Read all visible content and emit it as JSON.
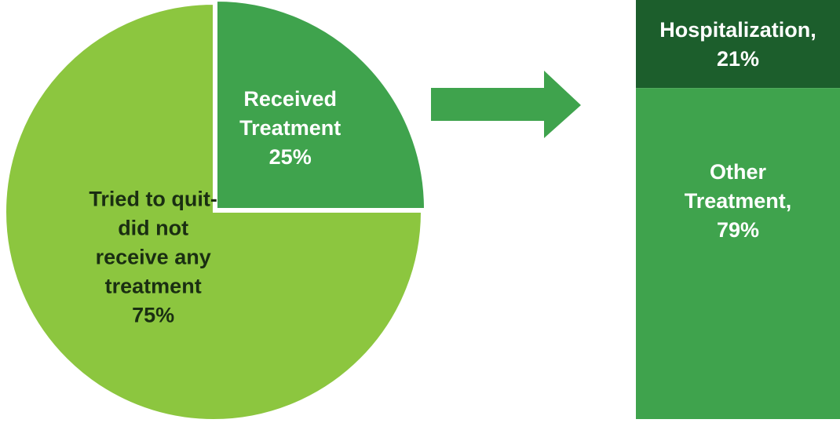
{
  "chart_data": [
    {
      "type": "pie",
      "slices": [
        {
          "label_lines": [
            "Tried to quit-",
            "did not",
            "receive any",
            "treatment",
            "75%"
          ],
          "value": 75,
          "color": "#8cc63f",
          "text_color": "#1a2e12"
        },
        {
          "label_lines": [
            "Received",
            "Treatment",
            "25%"
          ],
          "value": 25,
          "color": "#3fa34d",
          "text_color": "#ffffff"
        }
      ]
    },
    {
      "type": "bar",
      "stacked": true,
      "segments": [
        {
          "label_lines": [
            "Hospitalization,",
            "21%"
          ],
          "value": 21,
          "color": "#1c5e2c",
          "text_color": "#ffffff"
        },
        {
          "label_lines": [
            "Other",
            "Treatment,",
            "79%"
          ],
          "value": 79,
          "color": "#3fa34d",
          "text_color": "#ffffff"
        }
      ]
    }
  ],
  "arrow": {
    "icon": "right-arrow-icon",
    "color": "#3fa34d"
  }
}
